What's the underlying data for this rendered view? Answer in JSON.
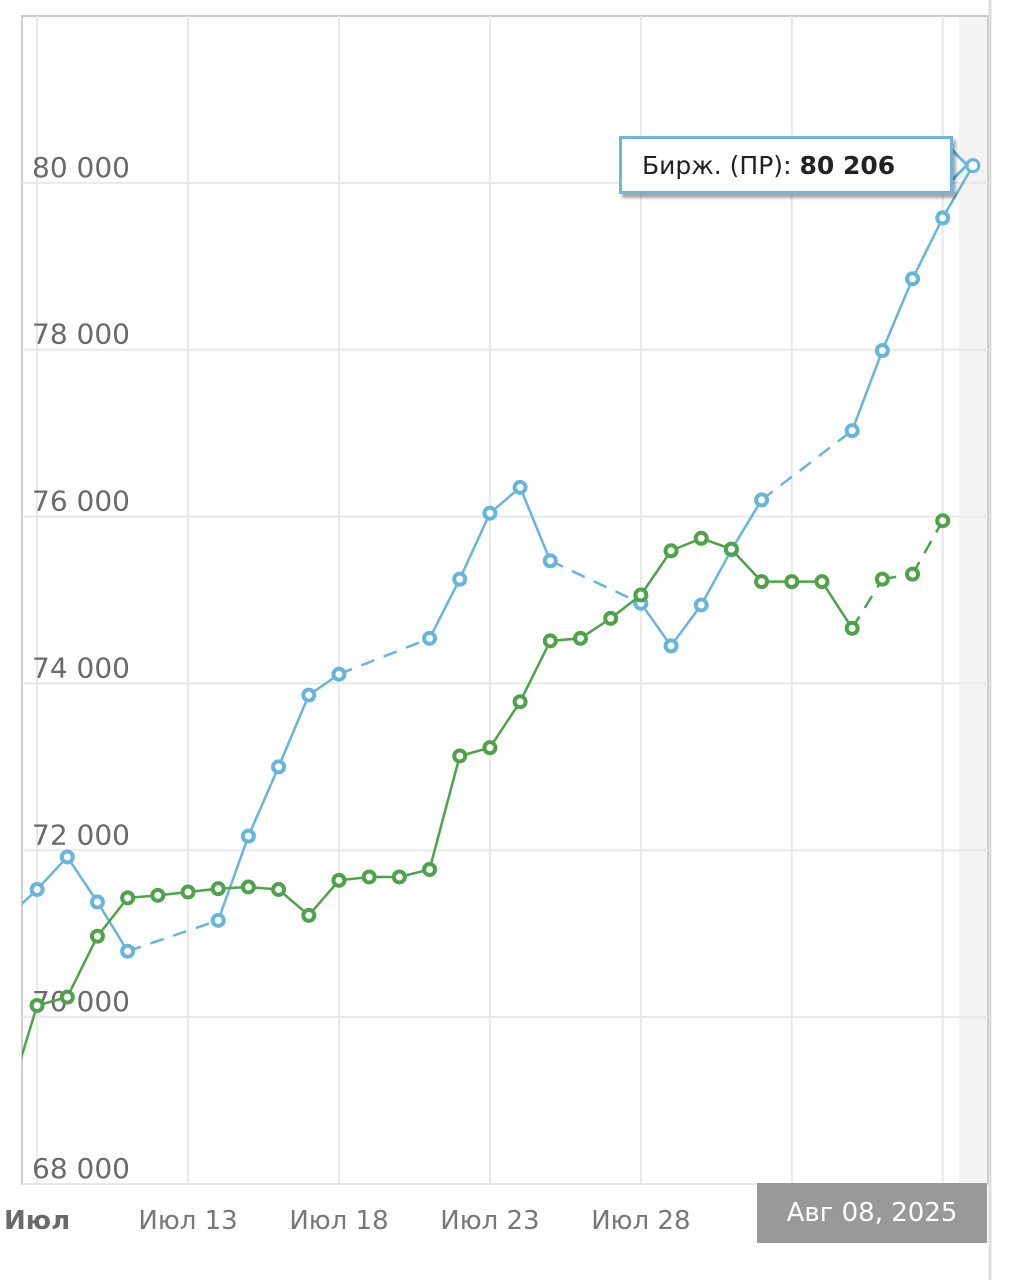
{
  "chart_data": {
    "type": "line",
    "title": "",
    "xlabel": "",
    "ylabel": "",
    "ylim": [
      68000,
      82000
    ],
    "yticks": [
      "68 000",
      "70 000",
      "72 000",
      "74 000",
      "76 000",
      "78 000",
      "80 000"
    ],
    "ytick_values": [
      68000,
      70000,
      72000,
      74000,
      76000,
      78000,
      80000
    ],
    "xticks": [
      {
        "date": "2025-07-08",
        "label": "Июл",
        "bold": true
      },
      {
        "date": "2025-07-13",
        "label": "Июл 13"
      },
      {
        "date": "2025-07-18",
        "label": "Июл 18"
      },
      {
        "date": "2025-07-23",
        "label": "Июл 23"
      },
      {
        "date": "2025-07-28",
        "label": "Июл 28"
      },
      {
        "date": "2025-08-02",
        "label": ""
      },
      {
        "date": "2025-08-07",
        "label": ""
      }
    ],
    "xlim": [
      "2025-07-07T12:00",
      "2025-08-08T12:00"
    ],
    "grid": true,
    "series": [
      {
        "name": "Бирж. (ПР)",
        "color": "#68b5db",
        "points": [
          [
            "2025-07-07",
            71190
          ],
          [
            "2025-07-08",
            71530
          ],
          [
            "2025-07-09",
            71920
          ],
          [
            "2025-07-10",
            71380
          ],
          [
            "2025-07-11",
            70790
          ],
          [
            "2025-07-14",
            71160,
            "gap"
          ],
          [
            "2025-07-15",
            72170
          ],
          [
            "2025-07-16",
            73000
          ],
          [
            "2025-07-17",
            73860
          ],
          [
            "2025-07-18",
            74110
          ],
          [
            "2025-07-21",
            74540,
            "gap"
          ],
          [
            "2025-07-22",
            75250
          ],
          [
            "2025-07-23",
            76040
          ],
          [
            "2025-07-24",
            76350
          ],
          [
            "2025-07-25",
            75470
          ],
          [
            "2025-07-28",
            74960,
            "gap"
          ],
          [
            "2025-07-29",
            74450
          ],
          [
            "2025-07-30",
            74940
          ],
          [
            "2025-07-31",
            75600
          ],
          [
            "2025-08-01",
            76200
          ],
          [
            "2025-08-04",
            77030,
            "gap"
          ],
          [
            "2025-08-05",
            77990
          ],
          [
            "2025-08-06",
            78850
          ],
          [
            "2025-08-07",
            79580
          ],
          [
            "2025-08-08",
            80206
          ]
        ]
      },
      {
        "color": "#4ea24a",
        "points": [
          [
            "2025-07-07",
            68950
          ],
          [
            "2025-07-08",
            70140
          ],
          [
            "2025-07-09",
            70240
          ],
          [
            "2025-07-10",
            70970
          ],
          [
            "2025-07-11",
            71430
          ],
          [
            "2025-07-12",
            71460
          ],
          [
            "2025-07-13",
            71500
          ],
          [
            "2025-07-14",
            71540
          ],
          [
            "2025-07-15",
            71560
          ],
          [
            "2025-07-16",
            71530
          ],
          [
            "2025-07-17",
            71220
          ],
          [
            "2025-07-18",
            71640
          ],
          [
            "2025-07-19",
            71680
          ],
          [
            "2025-07-20",
            71680
          ],
          [
            "2025-07-21",
            71770
          ],
          [
            "2025-07-22",
            73130
          ],
          [
            "2025-07-23",
            73230
          ],
          [
            "2025-07-24",
            73780
          ],
          [
            "2025-07-25",
            74510
          ],
          [
            "2025-07-26",
            74540
          ],
          [
            "2025-07-27",
            74780
          ],
          [
            "2025-07-28",
            75060
          ],
          [
            "2025-07-29",
            75590
          ],
          [
            "2025-07-30",
            75740
          ],
          [
            "2025-07-31",
            75610
          ],
          [
            "2025-08-01",
            75220
          ],
          [
            "2025-08-02",
            75220
          ],
          [
            "2025-08-03",
            75220
          ],
          [
            "2025-08-04",
            74660
          ],
          [
            "2025-08-05",
            75250,
            "gap"
          ],
          [
            "2025-08-06",
            75310,
            "gap"
          ],
          [
            "2025-08-07",
            75950,
            "gap"
          ]
        ]
      }
    ],
    "hover": {
      "date": "2025-08-08",
      "series_label": "Бирж. (ПР):",
      "value_label": "80 206",
      "date_label": "Авг 08, 2025"
    }
  }
}
